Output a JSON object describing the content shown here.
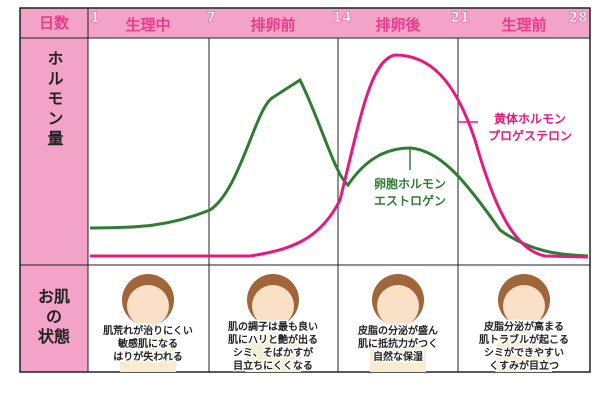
{
  "header": {
    "label": "日数",
    "days": [
      "1",
      "7",
      "14",
      "21",
      "28"
    ],
    "phases": [
      "生理中",
      "排卵前",
      "排卵後",
      "生理前"
    ]
  },
  "hormone_label": "ホルモン量",
  "skin_label": [
    "お肌",
    "の",
    "状態"
  ],
  "curves": {
    "estrogen": [
      "卵胞ホルモン",
      "エストロゲン"
    ],
    "progesterone": [
      "黄体ホルモン",
      "プロゲステロン"
    ]
  },
  "states": [
    [
      "肌荒れが治りにくい",
      "敏感肌になる",
      "はりが失われる"
    ],
    [
      "肌の調子は最も良い",
      "肌にハリと艶が出る",
      "シミ、そばかすが",
      "目立ちにくくなる"
    ],
    [
      "皮脂の分泌が盛ん",
      "肌に抵抗力がつく",
      "自然な保湿"
    ],
    [
      "皮脂分泌が高まる",
      "肌トラブルが起こる",
      "シミができやすい",
      "くすみが目立つ"
    ]
  ]
}
